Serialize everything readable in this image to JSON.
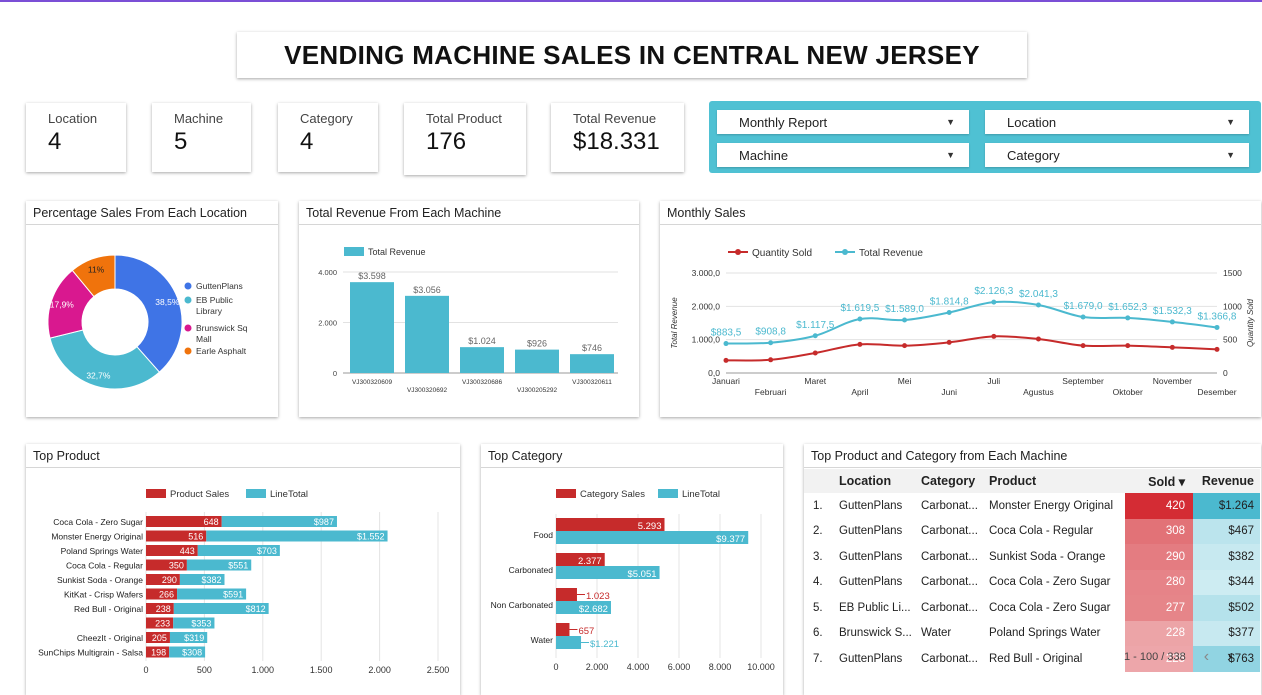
{
  "title": "VENDING MACHINE SALES IN CENTRAL NEW JERSEY",
  "kpis": [
    {
      "label": "Location",
      "value": "4"
    },
    {
      "label": "Machine",
      "value": "5"
    },
    {
      "label": "Category",
      "value": "4"
    },
    {
      "label": "Total Product",
      "value": "176"
    },
    {
      "label": "Total Revenue",
      "value": "$18.331"
    }
  ],
  "filters": [
    {
      "label": "Monthly Report"
    },
    {
      "label": "Location"
    },
    {
      "label": "Machine"
    },
    {
      "label": "Category"
    }
  ],
  "colors": {
    "accent": "#4fc1d3",
    "red": "#c62b2b",
    "teal": "#4bb9cf",
    "blue": "#3f74e6",
    "magenta": "#d9188f",
    "orange": "#f0730c"
  },
  "panels": {
    "location": "Percentage Sales From Each Location",
    "machine": "Total Revenue From Each Machine",
    "monthly": "Monthly Sales",
    "top_product": "Top Product",
    "top_category": "Top Category",
    "table": "Top Product and Category from Each Machine"
  },
  "chart_data": [
    {
      "type": "pie",
      "title": "Percentage Sales From Each Location",
      "slices": [
        {
          "label": "GuttenPlans",
          "value": 38.5,
          "text": "38,5%",
          "color": "#3f74e6"
        },
        {
          "label": "EB Public Library",
          "value": 32.7,
          "text": "32,7%",
          "color": "#4bb9cf"
        },
        {
          "label": "Brunswick Sq Mall",
          "value": 17.9,
          "text": "17,9%",
          "color": "#d9188f"
        },
        {
          "label": "Earle Asphalt",
          "value": 11,
          "text": "11%",
          "color": "#f0730c"
        }
      ]
    },
    {
      "type": "bar",
      "title": "Total Revenue From Each Machine",
      "legend": "Total Revenue",
      "categories": [
        "VJ300320609",
        "VJ300320692",
        "VJ300320686",
        "VJ300205292",
        "VJ300320611"
      ],
      "values": [
        3598,
        3056,
        1024,
        926,
        746
      ],
      "labels": [
        "$3.598",
        "$3.056",
        "$1.024",
        "$926",
        "$746"
      ],
      "ylim": [
        0,
        4000
      ],
      "yticks": [
        "0",
        "2.000",
        "4.000"
      ]
    },
    {
      "type": "line",
      "title": "Monthly Sales",
      "x": [
        "Januari",
        "Februari",
        "Maret",
        "April",
        "Mei",
        "Juni",
        "Juli",
        "Agustus",
        "September",
        "Oktober",
        "November",
        "Desember"
      ],
      "series": [
        {
          "name": "Quantity Sold",
          "axis": "right",
          "values": [
            190,
            198,
            300,
            430,
            410,
            460,
            550,
            510,
            410,
            410,
            385,
            355
          ]
        },
        {
          "name": "Total Revenue",
          "axis": "left",
          "values": [
            883.5,
            908.8,
            1117.5,
            1619.5,
            1589.0,
            1814.8,
            2126.3,
            2041.3,
            1679.0,
            1652.3,
            1532.3,
            1366.8
          ],
          "labels": [
            "$883,5",
            "$908,8",
            "$1.117,5",
            "$1.619,5",
            "$1.589,0",
            "$1.814,8",
            "$2.126,3",
            "$2.041,3",
            "$1.679,0",
            "$1.652,3",
            "$1.532,3",
            "$1.366,8"
          ]
        }
      ],
      "ylabel": "Total Revenue",
      "y2label": "Quantity Sold",
      "yticks": [
        "0,0",
        "1.000,0",
        "2.000,0",
        "3.000,0"
      ],
      "y2ticks": [
        "0",
        "500",
        "1000",
        "1500"
      ],
      "ylim": [
        0,
        3000
      ],
      "y2lim": [
        0,
        1500
      ]
    },
    {
      "type": "bar",
      "title": "Top Product",
      "orientation": "horizontal",
      "categories": [
        "Coca Cola - Zero Sugar",
        "Monster Energy Original",
        "Poland Springs Water",
        "Coca Cola - Regular",
        "Sunkist Soda - Orange",
        "KitKat - Crisp Wafers",
        "Red Bull - Original",
        "",
        "CheezIt - Original",
        "SunChips Multigrain - Salsa"
      ],
      "series": [
        {
          "name": "Product Sales",
          "values": [
            648,
            516,
            443,
            350,
            290,
            266,
            238,
            233,
            205,
            198
          ],
          "labels": [
            "648",
            "516",
            "443",
            "350",
            "290",
            "266",
            "238",
            "233",
            "205",
            "198"
          ]
        },
        {
          "name": "LineTotal",
          "values": [
            987,
            1552,
            703,
            551,
            382,
            591,
            812,
            353,
            319,
            308
          ],
          "labels": [
            "$987",
            "$1.552",
            "$703",
            "$551",
            "$382",
            "$591",
            "$812",
            "$353",
            "$319",
            "$308"
          ]
        }
      ],
      "xlim": [
        0,
        2500
      ],
      "xticks": [
        "0",
        "500",
        "1.000",
        "1.500",
        "2.000",
        "2.500"
      ]
    },
    {
      "type": "bar",
      "title": "Top Category",
      "orientation": "horizontal",
      "categories": [
        "Food",
        "Carbonated",
        "Non Carbonated",
        "Water"
      ],
      "series": [
        {
          "name": "Category Sales",
          "values": [
            5293,
            2377,
            1023,
            657
          ],
          "labels": [
            "5.293",
            "2.377",
            "1.023",
            "657"
          ]
        },
        {
          "name": "LineTotal",
          "values": [
            9377,
            5051,
            2682,
            1221
          ],
          "labels": [
            "$9.377",
            "$5.051",
            "$2.682",
            "$1.221"
          ]
        }
      ],
      "xlim": [
        0,
        10000
      ],
      "xticks": [
        "0",
        "2.000",
        "4.000",
        "6.000",
        "8.000",
        "10.000"
      ]
    }
  ],
  "table": {
    "headers": {
      "location": "Location",
      "category": "Category",
      "product": "Product",
      "sold": "Sold ▾",
      "revenue": "Revenue"
    },
    "rows": [
      {
        "idx": "1.",
        "location": "GuttenPlans",
        "category": "Carbonat...",
        "product": "Monster Energy Original",
        "sold": "420",
        "revenue": "$1.264",
        "soldv": 420,
        "revv": 1264
      },
      {
        "idx": "2.",
        "location": "GuttenPlans",
        "category": "Carbonat...",
        "product": "Coca Cola - Regular",
        "sold": "308",
        "revenue": "$467",
        "soldv": 308,
        "revv": 467
      },
      {
        "idx": "3.",
        "location": "GuttenPlans",
        "category": "Carbonat...",
        "product": "Sunkist Soda - Orange",
        "sold": "290",
        "revenue": "$382",
        "soldv": 290,
        "revv": 382
      },
      {
        "idx": "4.",
        "location": "GuttenPlans",
        "category": "Carbonat...",
        "product": "Coca Cola - Zero Sugar",
        "sold": "280",
        "revenue": "$344",
        "soldv": 280,
        "revv": 344
      },
      {
        "idx": "5.",
        "location": "EB Public Li...",
        "category": "Carbonat...",
        "product": "Coca Cola - Zero Sugar",
        "sold": "277",
        "revenue": "$502",
        "soldv": 277,
        "revv": 502
      },
      {
        "idx": "6.",
        "location": "Brunswick S...",
        "category": "Water",
        "product": "Poland Springs Water",
        "sold": "228",
        "revenue": "$377",
        "soldv": 228,
        "revv": 377
      },
      {
        "idx": "7.",
        "location": "GuttenPlans",
        "category": "Carbonat...",
        "product": "Red Bull - Original",
        "sold": "225",
        "revenue": "$763",
        "soldv": 225,
        "revv": 763
      }
    ],
    "pager": "1 - 100 / 338"
  }
}
